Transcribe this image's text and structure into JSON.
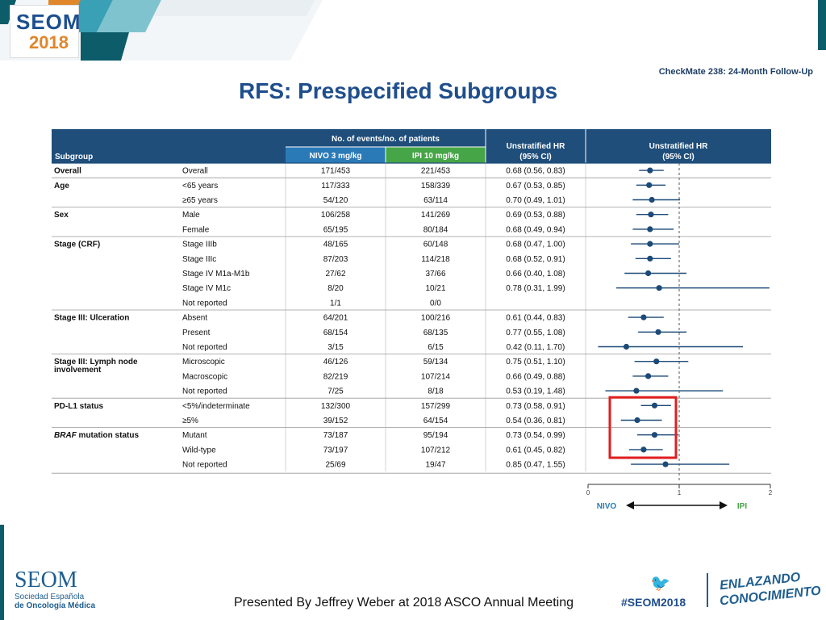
{
  "header": {
    "logo_top": "SEOM",
    "logo_year": "2018",
    "study": "CheckMate 238: 24-Month Follow-Up",
    "title": "RFS: Prespecified Subgroups"
  },
  "footer": {
    "presented_by": "Presented By Jeffrey Weber at 2018 ASCO Annual Meeting",
    "seom": "SEOM",
    "seom_sub1": "Sociedad Española",
    "seom_sub2": "de Oncología Médica",
    "hashtag": "#SEOM2018",
    "bird_icon": "twitter-bird-icon",
    "slogan1": "ENLAZANDO",
    "slogan2": "CONOCIMIENTO"
  },
  "colors": {
    "header_bg": "#1f4e7a",
    "nivo": "#2a7ab8",
    "ipi": "#46a546",
    "point": "#1c4a78",
    "highlight": "#e01e1e"
  },
  "chart_data": {
    "type": "forest",
    "columns": {
      "subgroup": "Subgroup",
      "events_group": "No. of events/no. of patients",
      "nivo": "NIVO 3 mg/kg",
      "ipi": "IPI 10 mg/kg",
      "hr_text": "Unstratified HR (95% CI)",
      "hr_plot": "Unstratified HR (95% CI)"
    },
    "xlim": [
      0,
      2
    ],
    "ticks": [
      "0",
      "1",
      "2"
    ],
    "reference_line": 1,
    "left_label": "NIVO",
    "right_label": "IPI",
    "rows": [
      {
        "group": "Overall",
        "label": "Overall",
        "nivo": "171/453",
        "ipi": "221/453",
        "hr_text": "0.68 (0.56, 0.83)",
        "hr": 0.68,
        "lo": 0.56,
        "hi": 0.83
      },
      {
        "group": "Age",
        "label": "<65 years",
        "nivo": "117/333",
        "ipi": "158/339",
        "hr_text": "0.67 (0.53, 0.85)",
        "hr": 0.67,
        "lo": 0.53,
        "hi": 0.85
      },
      {
        "group": "",
        "label": "≥65 years",
        "nivo": "54/120",
        "ipi": "63/114",
        "hr_text": "0.70 (0.49, 1.01)",
        "hr": 0.7,
        "lo": 0.49,
        "hi": 1.01
      },
      {
        "group": "Sex",
        "label": "Male",
        "nivo": "106/258",
        "ipi": "141/269",
        "hr_text": "0.69 (0.53, 0.88)",
        "hr": 0.69,
        "lo": 0.53,
        "hi": 0.88
      },
      {
        "group": "",
        "label": "Female",
        "nivo": "65/195",
        "ipi": "80/184",
        "hr_text": "0.68 (0.49, 0.94)",
        "hr": 0.68,
        "lo": 0.49,
        "hi": 0.94
      },
      {
        "group": "Stage (CRF)",
        "label": "Stage IIIb",
        "nivo": "48/165",
        "ipi": "60/148",
        "hr_text": "0.68 (0.47, 1.00)",
        "hr": 0.68,
        "lo": 0.47,
        "hi": 1.0
      },
      {
        "group": "",
        "label": "Stage IIIc",
        "nivo": "87/203",
        "ipi": "114/218",
        "hr_text": "0.68 (0.52, 0.91)",
        "hr": 0.68,
        "lo": 0.52,
        "hi": 0.91
      },
      {
        "group": "",
        "label": "Stage IV M1a-M1b",
        "nivo": "27/62",
        "ipi": "37/66",
        "hr_text": "0.66 (0.40, 1.08)",
        "hr": 0.66,
        "lo": 0.4,
        "hi": 1.08
      },
      {
        "group": "",
        "label": "Stage IV M1c",
        "nivo": "8/20",
        "ipi": "10/21",
        "hr_text": "0.78 (0.31, 1.99)",
        "hr": 0.78,
        "lo": 0.31,
        "hi": 1.99
      },
      {
        "group": "",
        "label": "Not reported",
        "nivo": "1/1",
        "ipi": "0/0",
        "hr_text": "",
        "hr": null,
        "lo": null,
        "hi": null
      },
      {
        "group": "Stage III: Ulceration",
        "label": "Absent",
        "nivo": "64/201",
        "ipi": "100/216",
        "hr_text": "0.61 (0.44, 0.83)",
        "hr": 0.61,
        "lo": 0.44,
        "hi": 0.83
      },
      {
        "group": "",
        "label": "Present",
        "nivo": "68/154",
        "ipi": "68/135",
        "hr_text": "0.77 (0.55, 1.08)",
        "hr": 0.77,
        "lo": 0.55,
        "hi": 1.08
      },
      {
        "group": "",
        "label": "Not reported",
        "nivo": "3/15",
        "ipi": "6/15",
        "hr_text": "0.42 (0.11, 1.70)",
        "hr": 0.42,
        "lo": 0.11,
        "hi": 1.7
      },
      {
        "group": "Stage III: Lymph node",
        "group2": "involvement",
        "label": "Microscopic",
        "nivo": "46/126",
        "ipi": "59/134",
        "hr_text": "0.75 (0.51, 1.10)",
        "hr": 0.75,
        "lo": 0.51,
        "hi": 1.1
      },
      {
        "group": "",
        "label": "Macroscopic",
        "nivo": "82/219",
        "ipi": "107/214",
        "hr_text": "0.66 (0.49, 0.88)",
        "hr": 0.66,
        "lo": 0.49,
        "hi": 0.88
      },
      {
        "group": "",
        "label": "Not reported",
        "nivo": "7/25",
        "ipi": "8/18",
        "hr_text": "0.53 (0.19, 1.48)",
        "hr": 0.53,
        "lo": 0.19,
        "hi": 1.48
      },
      {
        "group": "PD-L1 status",
        "label": "<5%/indeterminate",
        "nivo": "132/300",
        "ipi": "157/299",
        "hr_text": "0.73 (0.58, 0.91)",
        "hr": 0.73,
        "lo": 0.58,
        "hi": 0.91
      },
      {
        "group": "",
        "label": "≥5%",
        "nivo": "39/152",
        "ipi": "64/154",
        "hr_text": "0.54 (0.36, 0.81)",
        "hr": 0.54,
        "lo": 0.36,
        "hi": 0.81
      },
      {
        "group": "BRAF mutation status",
        "label": "Mutant",
        "nivo": "73/187",
        "ipi": "95/194",
        "hr_text": "0.73 (0.54, 0.99)",
        "hr": 0.73,
        "lo": 0.54,
        "hi": 0.99
      },
      {
        "group": "",
        "label": "Wild-type",
        "nivo": "73/197",
        "ipi": "107/212",
        "hr_text": "0.61 (0.45, 0.82)",
        "hr": 0.61,
        "lo": 0.45,
        "hi": 0.82
      },
      {
        "group": "",
        "label": "Not reported",
        "nivo": "25/69",
        "ipi": "19/47",
        "hr_text": "0.85 (0.47, 1.55)",
        "hr": 0.85,
        "lo": 0.47,
        "hi": 1.55
      }
    ],
    "group_starts": [
      0,
      1,
      3,
      5,
      10,
      13,
      16,
      18
    ],
    "highlighted_rows": [
      16,
      17,
      18,
      19
    ]
  }
}
